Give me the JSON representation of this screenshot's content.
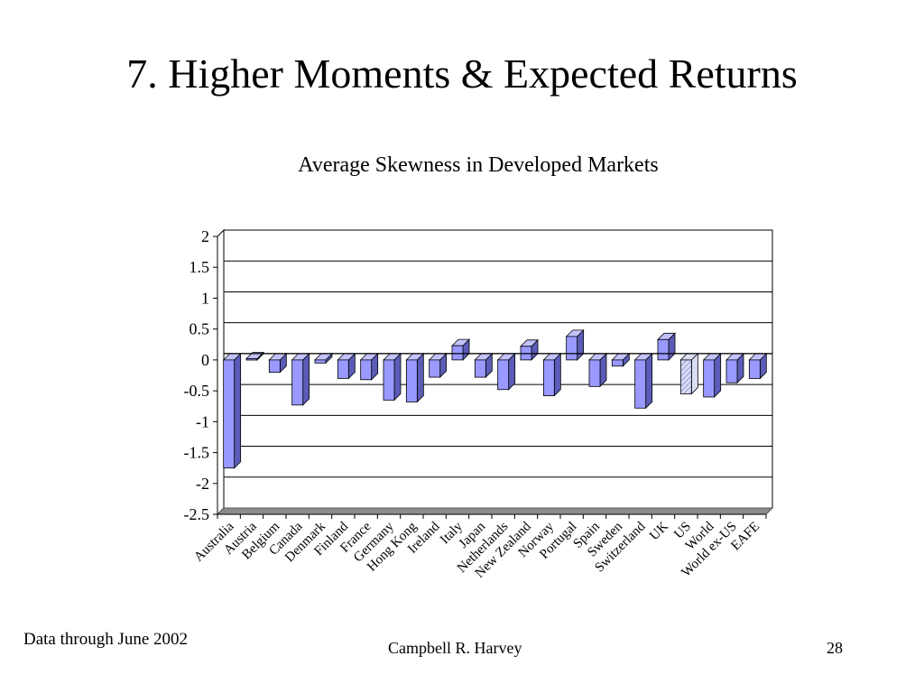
{
  "slide": {
    "title": "7. Higher Moments & Expected Returns",
    "footnote": "Data through June 2002",
    "author": "Campbell R. Harvey",
    "page_number": "28"
  },
  "chart_data": {
    "type": "bar",
    "title": "Average Skewness in Developed Markets",
    "xlabel": "",
    "ylabel": "",
    "ylim": [
      -2.5,
      2
    ],
    "yticks": [
      2,
      1.5,
      1,
      0.5,
      0,
      -0.5,
      -1,
      -1.5,
      -2,
      -2.5
    ],
    "ytick_labels": [
      "2",
      "1.5",
      "1",
      "0.5",
      "0",
      "-0.5",
      "-1",
      "-1.5",
      "-2",
      "-2.5"
    ],
    "grid": true,
    "categories": [
      "Australia",
      "Austria",
      "Belgium",
      "Canada",
      "Denmark",
      "Finland",
      "France",
      "Germany",
      "Hong Kong",
      "Ireland",
      "Italy",
      "Japan",
      "Netherlands",
      "New Zealand",
      "Norway",
      "Portugal",
      "Spain",
      "Sweden",
      "Switzerland",
      "UK",
      "US",
      "World",
      "World ex-US",
      "EAFE"
    ],
    "values": [
      -1.75,
      0.02,
      -0.2,
      -0.73,
      -0.05,
      -0.3,
      -0.32,
      -0.65,
      -0.68,
      -0.28,
      0.23,
      -0.28,
      -0.48,
      0.22,
      -0.58,
      0.38,
      -0.43,
      -0.1,
      -0.78,
      0.33,
      -0.55,
      -0.6,
      -0.37,
      -0.3
    ],
    "highlighted_category": "US",
    "colors": {
      "bar_fill": "#9999FF",
      "bar_side": "#5C5CB8",
      "bar_top": "#C2C2FF",
      "highlight_fill": "#D9DEF5",
      "highlight_hatch": "#7A7AC8",
      "floor": "#8C8C8C",
      "grid": "#000000",
      "text": "#000000"
    }
  }
}
